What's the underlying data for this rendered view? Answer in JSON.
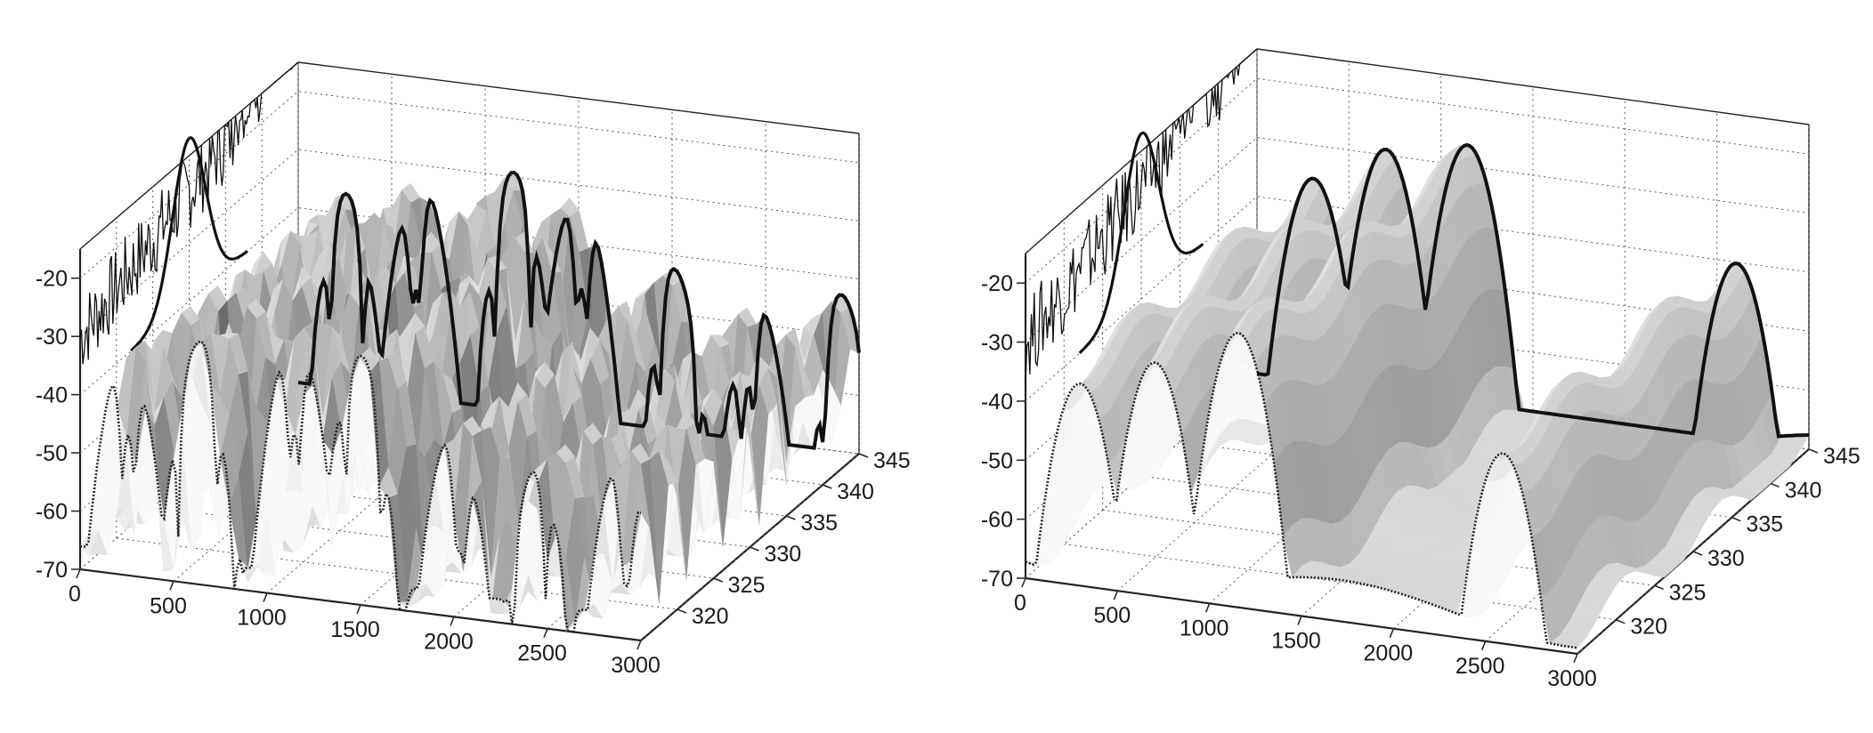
{
  "chart_data": [
    {
      "type": "surface",
      "title": "",
      "xlabel": "",
      "ylabel": "",
      "zlabel": "",
      "xlim": [
        0,
        3000
      ],
      "ylim": [
        315,
        345
      ],
      "zlim": [
        -70,
        -15
      ],
      "x_ticks": [
        "0",
        "500",
        "1000",
        "1500",
        "2000",
        "2500",
        "3000"
      ],
      "y_ticks": [
        "320",
        "325",
        "330",
        "335",
        "340",
        "345"
      ],
      "z_ticks": [
        "-20",
        "-30",
        "-40",
        "-50",
        "-60",
        "-70"
      ],
      "grid": true,
      "surface_style": "dense interference ripples with deep nulls",
      "envelope_peaks_x": [
        250,
        650,
        1150,
        1500,
        2000,
        2450,
        2900
      ],
      "envelope_peaks_z": [
        -32,
        -28,
        -25,
        -27,
        -38,
        -42,
        -39
      ],
      "back_wall_curve": {
        "noisy": true,
        "smooth_peak_y": 330
      }
    },
    {
      "type": "surface",
      "title": "",
      "xlabel": "",
      "ylabel": "",
      "zlabel": "",
      "xlim": [
        0,
        3000
      ],
      "ylim": [
        315,
        345
      ],
      "zlim": [
        -70,
        -15
      ],
      "x_ticks": [
        "0",
        "500",
        "1000",
        "1500",
        "2000",
        "2500",
        "3000"
      ],
      "y_ticks": [
        "320",
        "325",
        "330",
        "335",
        "340",
        "345"
      ],
      "z_ticks": [
        "-20",
        "-30",
        "-40",
        "-50",
        "-60",
        "-70"
      ],
      "grid": true,
      "surface_style": "smooth ridges",
      "envelope_peaks_x": [
        300,
        700,
        1150,
        2600
      ],
      "envelope_peaks_z": [
        -33,
        -28,
        -24,
        -36
      ],
      "back_wall_curve": {
        "noisy": true,
        "smooth_peak_y": 330
      }
    }
  ]
}
